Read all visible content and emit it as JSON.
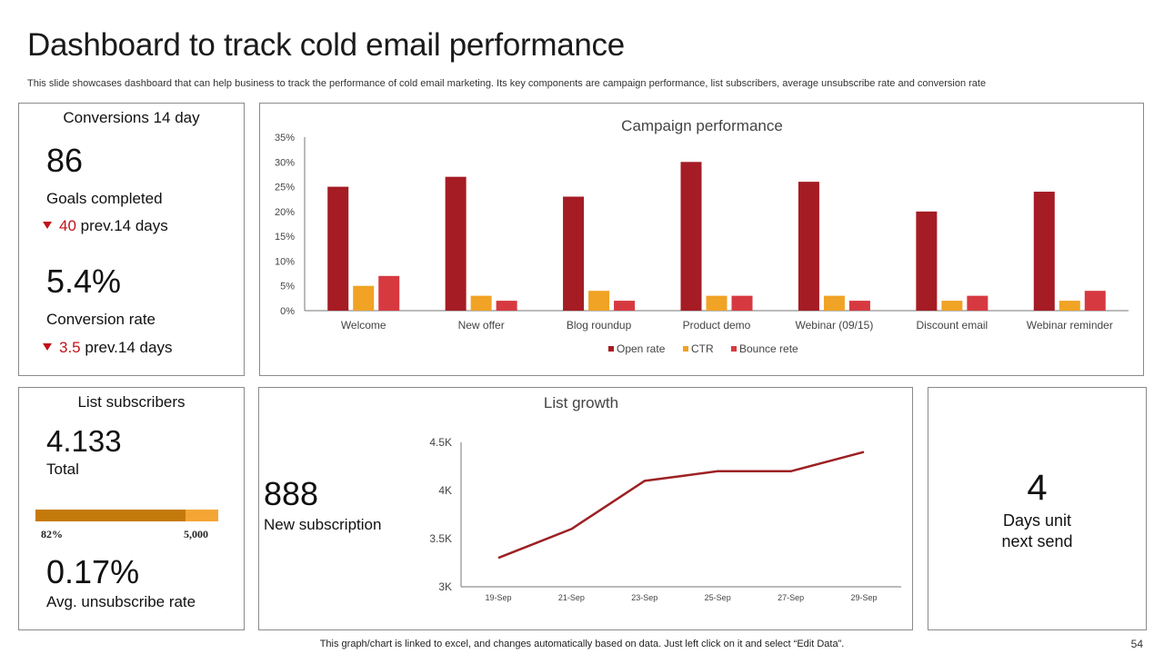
{
  "header": {
    "title": "Dashboard to track cold email performance",
    "subtitle": "This slide showcases dashboard that can help business to track the performance of cold email marketing. Its key components are campaign performance, list subscribers, average unsubscribe rate and conversion rate"
  },
  "conversions": {
    "heading": "Conversions 14 day",
    "goals_value": "86",
    "goals_label": "Goals completed",
    "goals_prev_value": "40",
    "goals_prev_label": "prev.14 days",
    "rate_value": "5.4%",
    "rate_label": "Conversion rate",
    "rate_prev_value": "3.5",
    "rate_prev_label": "prev.14 days"
  },
  "subscribers": {
    "heading": "List subscribers",
    "total_value": "4.133",
    "total_label": "Total",
    "progress_fraction": 0.82,
    "progress_pct_label": "82%",
    "progress_max_label": "5,000",
    "unsub_value": "0.17%",
    "unsub_label": "Avg. unsubscribe rate"
  },
  "growth": {
    "new_value": "888",
    "new_label": "New subscription"
  },
  "days": {
    "value": "4",
    "label_line1": "Days unit",
    "label_line2": "next send"
  },
  "footer": {
    "note": "This graph/chart is linked to excel,  and changes automatically based on data. Just left click on it and select “Edit Data”.",
    "page": "54"
  },
  "colors": {
    "open_rate": "#a51c24",
    "ctr": "#f0a325",
    "bounce": "#d63a40",
    "line": "#9c2124",
    "accent_red": "#c0131a"
  },
  "chart_data": [
    {
      "type": "bar",
      "title": "Campaign performance",
      "categories": [
        "Welcome",
        "New offer",
        "Blog roundup",
        "Product demo",
        "Webinar (09/15)",
        "Discount email",
        "Webinar reminder"
      ],
      "series": [
        {
          "name": "Open rate",
          "values": [
            25,
            27,
            23,
            30,
            26,
            20,
            24
          ]
        },
        {
          "name": "CTR",
          "values": [
            5,
            3,
            4,
            3,
            3,
            2,
            2
          ]
        },
        {
          "name": "Bounce rete",
          "values": [
            7,
            2,
            2,
            3,
            2,
            3,
            4
          ]
        }
      ],
      "ylim": [
        0,
        35
      ],
      "yticks": [
        "0%",
        "5%",
        "10%",
        "15%",
        "20%",
        "25%",
        "30%",
        "35%"
      ],
      "xlabel": "",
      "ylabel": "",
      "legend": "bottom"
    },
    {
      "type": "line",
      "title": "List growth",
      "categories": [
        "19-Sep",
        "20-Sep",
        "21-Sep",
        "22-Sep",
        "23-Sep",
        "24-Sep",
        "25-Sep",
        "26-Sep",
        "27-Sep",
        "28-Sep",
        "29-Sep"
      ],
      "xtick_labels": [
        "19-Sep",
        "21-Sep",
        "23-Sep",
        "25-Sep",
        "27-Sep",
        "29-Sep"
      ],
      "values": [
        3300,
        3450,
        3600,
        3850,
        4100,
        4150,
        4200,
        4200,
        4200,
        4300,
        4400
      ],
      "ylim": [
        3000,
        4500
      ],
      "yticks": [
        "3K",
        "3.5K",
        "4K",
        "4.5K"
      ],
      "xlabel": "",
      "ylabel": ""
    }
  ]
}
